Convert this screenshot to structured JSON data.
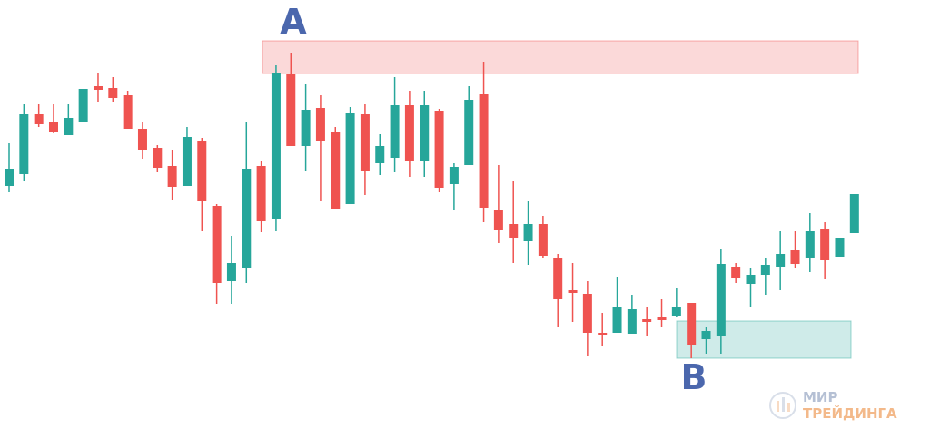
{
  "chart_data": {
    "type": "candlestick",
    "ylim": [
      0,
      473
    ],
    "up_color": "#26a69a",
    "down_color": "#ef5350",
    "open": [
      268,
      281,
      347,
      339,
      324,
      339,
      378,
      376,
      368,
      331,
      310,
      290,
      268,
      317,
      246,
      163,
      177,
      290,
      232,
      391,
      312,
      354,
      328,
      248,
      347,
      293,
      299,
      357,
      295,
      351,
      270,
      291,
      369,
      241,
      226,
      207,
      226,
      188,
      153,
      149,
      106,
      106,
      105,
      121,
      123,
      125,
      139,
      99,
      103,
      179,
      160,
      170,
      179,
      197,
      189,
      221,
      190,
      216
    ],
    "high": [
      315,
      358,
      358,
      358,
      358,
      375,
      393,
      388,
      373,
      338,
      313,
      308,
      333,
      321,
      248,
      213,
      338,
      295,
      401,
      415,
      380,
      368,
      333,
      355,
      358,
      325,
      388,
      373,
      373,
      353,
      293,
      378,
      405,
      291,
      273,
      251,
      235,
      193,
      183,
      163,
      128,
      168,
      148,
      135,
      143,
      155,
      139,
      113,
      198,
      183,
      178,
      188,
      218,
      218,
      238,
      228,
      211,
      259
    ],
    "low": [
      261,
      273,
      333,
      326,
      324,
      339,
      361,
      361,
      331,
      298,
      283,
      253,
      268,
      218,
      138,
      138,
      161,
      217,
      218,
      312,
      285,
      251,
      243,
      248,
      258,
      280,
      283,
      278,
      278,
      261,
      241,
      291,
      228,
      205,
      183,
      181,
      188,
      113,
      118,
      81,
      91,
      106,
      105,
      103,
      113,
      123,
      78,
      83,
      83,
      161,
      135,
      148,
      153,
      177,
      173,
      165,
      190,
      216
    ],
    "close": [
      287,
      347,
      336,
      328,
      343,
      375,
      374,
      365,
      331,
      308,
      288,
      267,
      322,
      251,
      161,
      183,
      287,
      229,
      393,
      312,
      352,
      318,
      243,
      348,
      285,
      312,
      357,
      295,
      357,
      266,
      289,
      363,
      244,
      219,
      211,
      226,
      191,
      143,
      150,
      106,
      104,
      134,
      132,
      118,
      120,
      135,
      93,
      108,
      182,
      166,
      170,
      181,
      193,
      182,
      218,
      186,
      211,
      259
    ],
    "zones": [
      {
        "label": "A",
        "from": 392,
        "to": 428,
        "color": "#ef5350"
      },
      {
        "label": "B",
        "from": 78,
        "to": 119,
        "color": "#26a69a"
      }
    ],
    "watermark": [
      "МИР",
      "ТРЕЙДИНГА"
    ]
  }
}
